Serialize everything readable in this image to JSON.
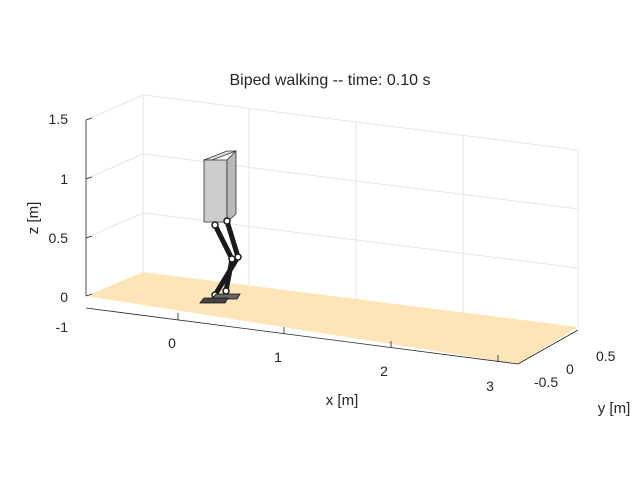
{
  "chart_data": {
    "type": "3d-line",
    "title": "Biped walking -- time: 0.10 s",
    "xlabel": "x [m]",
    "ylabel": "y [m]",
    "zlabel": "z [m]",
    "xticks": [
      0,
      1,
      2,
      3
    ],
    "yticks": [
      -0.5,
      0,
      0.5
    ],
    "zticks": [
      -1,
      0,
      0.5,
      1,
      1.5
    ],
    "ground_color": "#fde5b8",
    "torso_color": "#cccccc",
    "grid": true
  }
}
